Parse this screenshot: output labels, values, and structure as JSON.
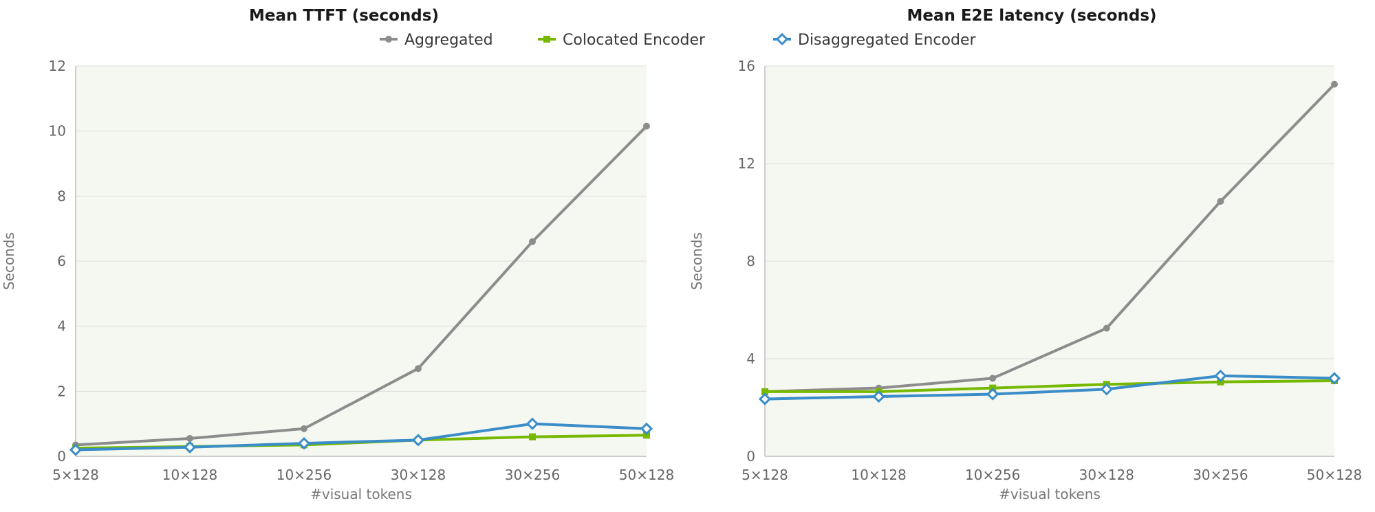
{
  "legend": [
    {
      "name": "Aggregated",
      "color": "#8c8c8c",
      "marker": "circle"
    },
    {
      "name": "Colocated Encoder",
      "color": "#76b900",
      "marker": "square"
    },
    {
      "name": "Disaggregated Encoder",
      "color": "#3a8dc8",
      "marker": "diamond"
    }
  ],
  "chart_data": [
    {
      "type": "line",
      "title": "Mean TTFT (seconds)",
      "xlabel": "#visual tokens",
      "ylabel": "Seconds",
      "categories": [
        "5×128",
        "10×128",
        "10×256",
        "30×128",
        "30×256",
        "50×128"
      ],
      "ylim": [
        0,
        12
      ],
      "yticks": [
        0,
        2,
        4,
        6,
        8,
        10,
        12
      ],
      "grid": true,
      "legend_position": "top-center",
      "series": [
        {
          "name": "Aggregated",
          "color": "#8c8c8c",
          "marker": "circle",
          "values": [
            0.35,
            0.55,
            0.85,
            2.7,
            6.6,
            10.15
          ]
        },
        {
          "name": "Colocated Encoder",
          "color": "#76b900",
          "marker": "square",
          "values": [
            0.25,
            0.3,
            0.35,
            0.5,
            0.6,
            0.65
          ]
        },
        {
          "name": "Disaggregated Encoder",
          "color": "#3a8dc8",
          "marker": "diamond",
          "values": [
            0.2,
            0.28,
            0.4,
            0.5,
            1.0,
            0.85
          ]
        }
      ]
    },
    {
      "type": "line",
      "title": "Mean E2E latency (seconds)",
      "xlabel": "#visual tokens",
      "ylabel": "Seconds",
      "categories": [
        "5×128",
        "10×128",
        "10×256",
        "30×128",
        "30×256",
        "50×128"
      ],
      "ylim": [
        0,
        16
      ],
      "yticks": [
        0,
        4,
        8,
        12,
        16
      ],
      "grid": true,
      "series": [
        {
          "name": "Aggregated",
          "color": "#8c8c8c",
          "marker": "circle",
          "values": [
            2.65,
            2.8,
            3.2,
            5.25,
            10.45,
            15.25
          ]
        },
        {
          "name": "Colocated Encoder",
          "color": "#76b900",
          "marker": "square",
          "values": [
            2.65,
            2.65,
            2.8,
            2.95,
            3.05,
            3.1
          ]
        },
        {
          "name": "Disaggregated Encoder",
          "color": "#3a8dc8",
          "marker": "diamond",
          "values": [
            2.35,
            2.45,
            2.55,
            2.75,
            3.3,
            3.2
          ]
        }
      ]
    }
  ]
}
